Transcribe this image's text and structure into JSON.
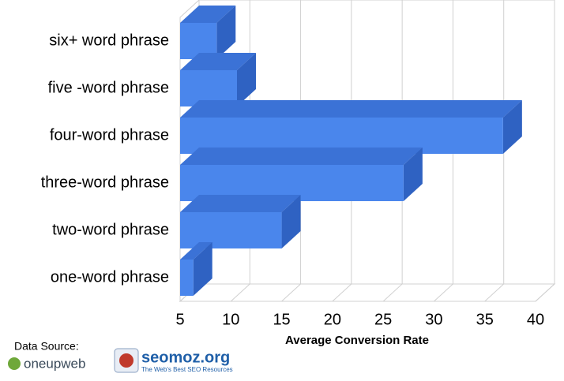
{
  "chart_data": {
    "type": "bar3d",
    "orientation": "horizontal",
    "x_label": "Average Conversion Rate",
    "categories": [
      "six+ word phrase",
      "five -word phrase",
      "four-word phrase",
      "three-word phrase",
      "two-word phrase",
      "one-word phrase"
    ],
    "values": [
      8.6,
      10.6,
      36.8,
      27.0,
      15.0,
      6.3
    ],
    "color": "#4a86ec",
    "xlim": [
      5,
      40
    ],
    "xticks": [
      5,
      10,
      15,
      20,
      25,
      30,
      35,
      40
    ],
    "grid": true
  },
  "footer": {
    "source_label": "Data Source:",
    "logo_one": "oneupweb",
    "logo_two": "seomoz.org",
    "logo_two_tagline": "The Web's Best SEO Resources"
  }
}
